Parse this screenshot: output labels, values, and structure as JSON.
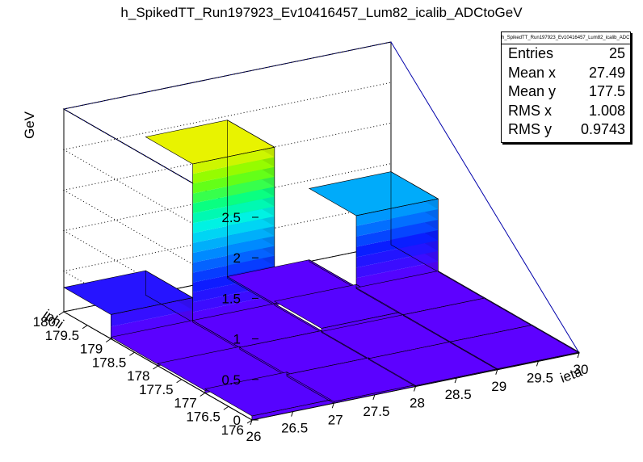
{
  "chart_data": {
    "type": "lego3d",
    "title": "h_SpikedTT_Run197923_Ev10416457_Lum82_icalib_ADCtoGeV",
    "xlabel": "ieta",
    "ylabel": "iphi",
    "zlabel": "GeV",
    "xlim": [
      26,
      30
    ],
    "ylim": [
      176,
      180
    ],
    "zlim": [
      0,
      2.5
    ],
    "x_ticks": [
      "26",
      "26.5",
      "27",
      "27.5",
      "28",
      "28.5",
      "29",
      "29.5",
      "30"
    ],
    "y_ticks": [
      "176",
      "176.5",
      "177",
      "177.5",
      "178",
      "178.5",
      "179",
      "179.5",
      "180"
    ],
    "z_ticks": [
      "0",
      "0.5",
      "1",
      "1.5",
      "2",
      "2.5"
    ],
    "bins": [
      {
        "x": [
          26,
          27
        ],
        "y": [
          176,
          177
        ],
        "value": 0.05
      },
      {
        "x": [
          27,
          28
        ],
        "y": [
          176,
          177
        ],
        "value": 0.02
      },
      {
        "x": [
          28,
          29
        ],
        "y": [
          176,
          177
        ],
        "value": 0.01
      },
      {
        "x": [
          29,
          30
        ],
        "y": [
          176,
          177
        ],
        "value": 0.01
      },
      {
        "x": [
          26,
          27
        ],
        "y": [
          177,
          178
        ],
        "value": 0.03
      },
      {
        "x": [
          27,
          28
        ],
        "y": [
          177,
          178
        ],
        "value": 0.02
      },
      {
        "x": [
          28,
          29
        ],
        "y": [
          177,
          178
        ],
        "value": 0.01
      },
      {
        "x": [
          29,
          30
        ],
        "y": [
          177,
          178
        ],
        "value": 0.01
      },
      {
        "x": [
          26,
          27
        ],
        "y": [
          178,
          179
        ],
        "value": 0.02
      },
      {
        "x": [
          27,
          28
        ],
        "y": [
          178,
          179
        ],
        "value": 0.02
      },
      {
        "x": [
          28,
          29
        ],
        "y": [
          178,
          179
        ],
        "value": 0.05
      },
      {
        "x": [
          29,
          30
        ],
        "y": [
          178,
          179
        ],
        "value": 0.01
      },
      {
        "x": [
          26,
          27
        ],
        "y": [
          179,
          180
        ],
        "value": 0.3
      },
      {
        "x": [
          27,
          28
        ],
        "y": [
          179,
          180
        ],
        "value": 1.95
      },
      {
        "x": [
          28,
          29
        ],
        "y": [
          179,
          180
        ],
        "value": 0.02
      },
      {
        "x": [
          29,
          30
        ],
        "y": [
          179,
          180
        ],
        "value": 0.9
      }
    ],
    "stats": [
      {
        "label": "Entries",
        "value": "25"
      },
      {
        "label": "Mean x",
        "value": "27.49"
      },
      {
        "label": "Mean y",
        "value": "177.5"
      },
      {
        "label": "RMS x",
        "value": "1.008"
      },
      {
        "label": "RMS y",
        "value": "0.9743"
      }
    ]
  },
  "statbox_title": "h_SpikedTT_Run197923_Ev10416457_Lum82_icalib_ADCtoGeV"
}
